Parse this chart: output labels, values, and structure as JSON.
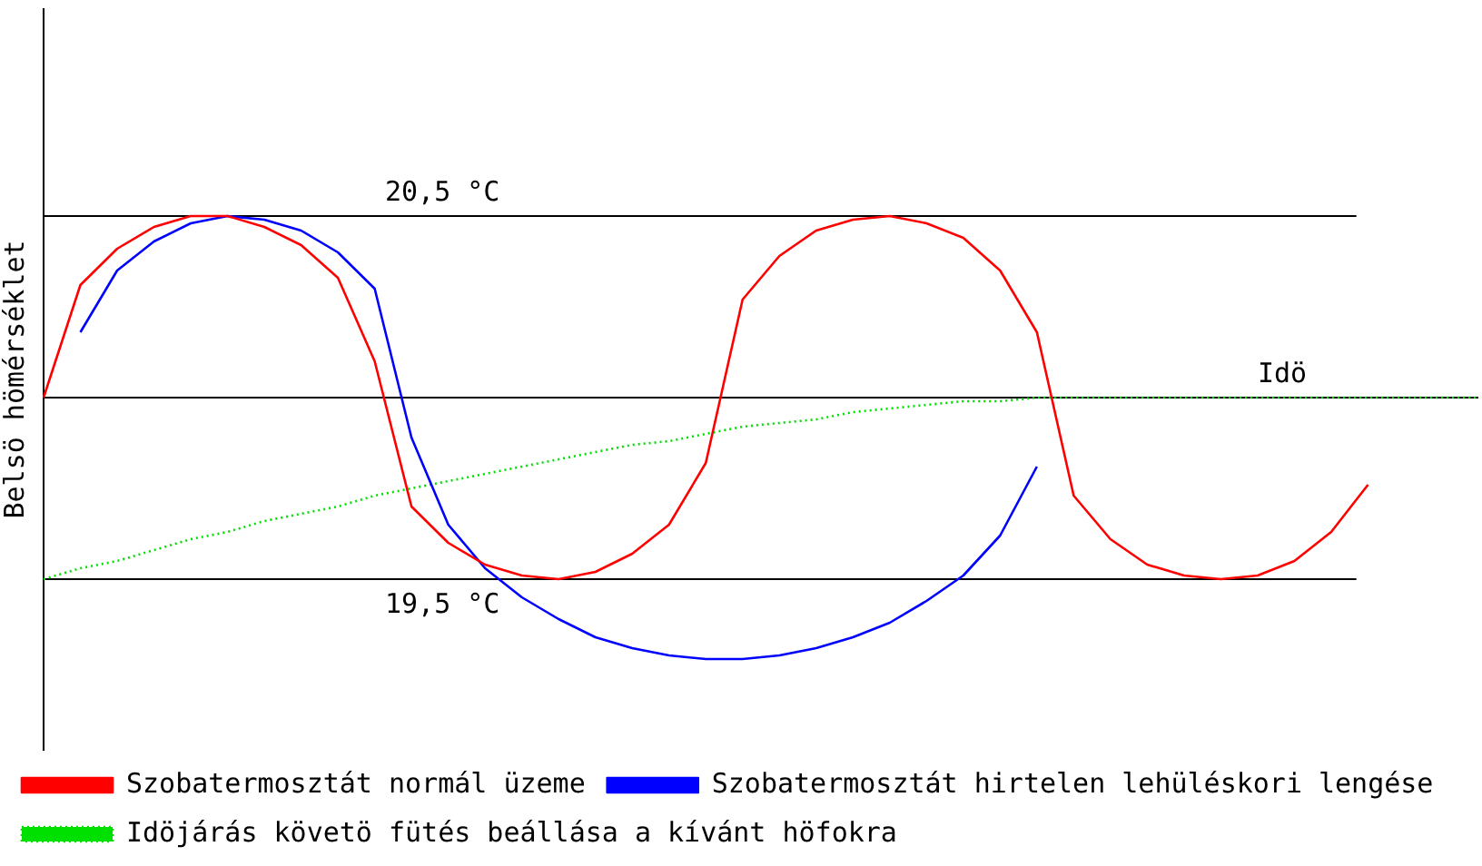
{
  "chart_data": {
    "type": "line",
    "xlabel": "Idö",
    "ylabel": "Belsö hömérséklet",
    "categories": [
      null,
      null,
      null,
      null,
      null,
      null,
      null,
      null,
      null,
      null,
      null,
      null,
      null,
      null,
      null,
      null,
      null,
      null,
      null,
      null,
      null,
      null,
      null,
      null,
      null,
      null,
      null,
      null,
      null,
      null,
      null,
      null,
      null,
      null,
      null,
      null,
      null,
      null,
      null,
      null
    ],
    "series": [
      {
        "name": "Szobatermosztát normál üzeme",
        "color": "#ff0000",
        "values": [
          20.0,
          20.31,
          20.41,
          20.47,
          20.5,
          20.5,
          20.47,
          20.42,
          20.33,
          20.1,
          19.7,
          19.6,
          19.54,
          19.51,
          19.5,
          19.52,
          19.57,
          19.65,
          19.82,
          20.27,
          20.39,
          20.46,
          20.49,
          20.5,
          20.48,
          20.44,
          20.35,
          20.18,
          19.73,
          19.61,
          19.54,
          19.51,
          19.5,
          19.51,
          19.55,
          19.63,
          19.76,
          null,
          null,
          null
        ]
      },
      {
        "name": "Szobatermosztát hirtelen lehüléskori lengése",
        "color": "#0000ff",
        "values": [
          null,
          20.18,
          20.35,
          20.43,
          20.48,
          20.5,
          20.49,
          20.46,
          20.4,
          20.3,
          19.89,
          19.65,
          19.53,
          19.45,
          19.39,
          19.34,
          19.31,
          19.29,
          19.28,
          19.28,
          19.29,
          19.31,
          19.34,
          19.38,
          19.44,
          19.51,
          19.62,
          19.81,
          null,
          null,
          null,
          null,
          null,
          null,
          null,
          null,
          null,
          null,
          null,
          null
        ]
      },
      {
        "name": "Idöjárás követö fütés beállása a kívánt höfokra",
        "color": "#00e000",
        "line_style": "dotted",
        "values": [
          19.5,
          19.53,
          19.55,
          19.58,
          19.61,
          19.63,
          19.66,
          19.68,
          19.7,
          19.73,
          19.75,
          19.77,
          19.79,
          19.81,
          19.83,
          19.85,
          19.87,
          19.88,
          19.9,
          19.92,
          19.93,
          19.94,
          19.96,
          19.97,
          19.98,
          19.99,
          19.99,
          20.0,
          20.0,
          20.0,
          20.0,
          20.0,
          20.0,
          20.0,
          20.0,
          20.0,
          20.0,
          20.0,
          20.0,
          20.0
        ]
      }
    ],
    "ylim": [
      19.03,
      21.07
    ],
    "ref_lines": [
      {
        "axis": "y",
        "value": 20.5,
        "label": "20,5 °C"
      },
      {
        "axis": "y",
        "value": 20,
        "label": null
      },
      {
        "axis": "y",
        "value": 19.5,
        "label": "19,5 °C"
      }
    ],
    "tick_labels": false,
    "grid": false,
    "legend": "bottom",
    "marker": "none",
    "line_style": "solid"
  }
}
